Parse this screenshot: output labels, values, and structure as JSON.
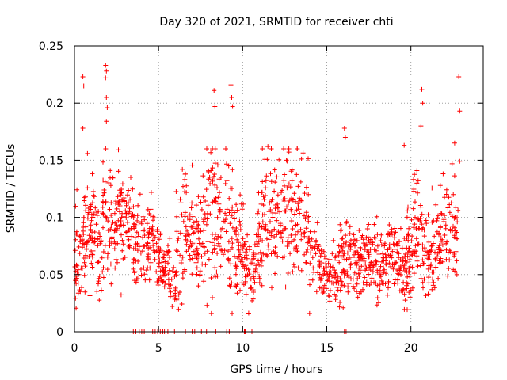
{
  "chart_data": {
    "type": "scatter",
    "title": "Day 320 of 2021, SRMTID for receiver chti",
    "xlabel": "GPS time / hours",
    "ylabel": "SRMTID / TECUs",
    "xlim": [
      0,
      24.3
    ],
    "ylim": [
      0,
      0.25
    ],
    "xticks": [
      0,
      5,
      10,
      15,
      20
    ],
    "xtick_labels": [
      "0",
      "5",
      "10",
      "15",
      "20"
    ],
    "yticks": [
      0,
      0.05,
      0.1,
      0.15,
      0.2,
      0.25
    ],
    "ytick_labels": [
      "0",
      "0.05",
      "0.1",
      "0.15",
      "0.2",
      "0.25"
    ],
    "grid": true,
    "marker": "+",
    "marker_color": "#ff0000",
    "envelope": {
      "x": [
        0.0,
        0.2,
        0.4,
        0.6,
        0.8,
        1.0,
        1.3,
        1.6,
        1.9,
        2.2,
        2.5,
        2.8,
        3.1,
        3.4,
        3.7,
        4.0,
        4.3,
        4.6,
        4.9,
        5.2,
        5.5,
        5.8,
        6.1,
        6.4,
        6.7,
        7.0,
        7.3,
        7.6,
        7.9,
        8.2,
        8.5,
        8.8,
        9.1,
        9.4,
        9.7,
        10.0,
        10.3,
        10.6,
        10.9,
        11.2,
        11.5,
        11.8,
        12.1,
        12.4,
        12.7,
        13.0,
        13.3,
        13.6,
        13.9,
        14.2,
        14.5,
        14.8,
        15.1,
        15.4,
        15.7,
        16.0,
        16.3,
        16.6,
        16.9,
        17.2,
        17.5,
        17.8,
        18.1,
        18.4,
        18.7,
        19.0,
        19.3,
        19.6,
        19.9,
        20.2,
        20.5,
        20.8,
        21.1,
        21.4,
        21.7,
        22.0,
        22.3,
        22.6,
        22.8
      ],
      "center": [
        0.055,
        0.062,
        0.075,
        0.085,
        0.09,
        0.088,
        0.08,
        0.085,
        0.1,
        0.095,
        0.088,
        0.095,
        0.1,
        0.09,
        0.08,
        0.075,
        0.075,
        0.085,
        0.07,
        0.06,
        0.06,
        0.05,
        0.065,
        0.08,
        0.085,
        0.08,
        0.07,
        0.085,
        0.1,
        0.105,
        0.1,
        0.105,
        0.1,
        0.085,
        0.075,
        0.07,
        0.055,
        0.05,
        0.07,
        0.09,
        0.095,
        0.1,
        0.095,
        0.1,
        0.11,
        0.105,
        0.1,
        0.095,
        0.085,
        0.07,
        0.06,
        0.05,
        0.045,
        0.055,
        0.06,
        0.055,
        0.06,
        0.065,
        0.062,
        0.058,
        0.06,
        0.065,
        0.06,
        0.058,
        0.06,
        0.065,
        0.055,
        0.05,
        0.07,
        0.09,
        0.085,
        0.07,
        0.06,
        0.065,
        0.08,
        0.085,
        0.09,
        0.085,
        0.08
      ],
      "spread": [
        0.025,
        0.03,
        0.035,
        0.035,
        0.03,
        0.03,
        0.03,
        0.035,
        0.04,
        0.035,
        0.03,
        0.03,
        0.03,
        0.03,
        0.025,
        0.025,
        0.02,
        0.02,
        0.02,
        0.015,
        0.015,
        0.02,
        0.03,
        0.035,
        0.035,
        0.03,
        0.03,
        0.035,
        0.04,
        0.045,
        0.045,
        0.045,
        0.04,
        0.035,
        0.03,
        0.025,
        0.02,
        0.02,
        0.03,
        0.035,
        0.035,
        0.035,
        0.035,
        0.035,
        0.035,
        0.035,
        0.03,
        0.03,
        0.03,
        0.025,
        0.02,
        0.02,
        0.02,
        0.02,
        0.025,
        0.02,
        0.025,
        0.025,
        0.025,
        0.02,
        0.02,
        0.02,
        0.02,
        0.02,
        0.02,
        0.025,
        0.02,
        0.02,
        0.03,
        0.035,
        0.03,
        0.025,
        0.02,
        0.025,
        0.03,
        0.03,
        0.03,
        0.03,
        0.025
      ]
    },
    "point_count": 1600,
    "outliers": [
      {
        "x": 0.5,
        "y": 0.223
      },
      {
        "x": 0.55,
        "y": 0.215
      },
      {
        "x": 0.5,
        "y": 0.178
      },
      {
        "x": 1.85,
        "y": 0.233
      },
      {
        "x": 1.9,
        "y": 0.228
      },
      {
        "x": 1.85,
        "y": 0.222
      },
      {
        "x": 1.9,
        "y": 0.205
      },
      {
        "x": 1.95,
        "y": 0.196
      },
      {
        "x": 1.9,
        "y": 0.184
      },
      {
        "x": 8.3,
        "y": 0.211
      },
      {
        "x": 8.35,
        "y": 0.197
      },
      {
        "x": 9.3,
        "y": 0.216
      },
      {
        "x": 9.35,
        "y": 0.205
      },
      {
        "x": 9.4,
        "y": 0.197
      },
      {
        "x": 16.05,
        "y": 0.178
      },
      {
        "x": 16.1,
        "y": 0.17
      },
      {
        "x": 20.65,
        "y": 0.212
      },
      {
        "x": 20.7,
        "y": 0.2
      },
      {
        "x": 20.6,
        "y": 0.18
      },
      {
        "x": 22.85,
        "y": 0.223
      },
      {
        "x": 22.9,
        "y": 0.193
      },
      {
        "x": 22.6,
        "y": 0.165
      },
      {
        "x": 22.9,
        "y": 0.149
      },
      {
        "x": 12.6,
        "y": 0.15
      },
      {
        "x": 11.5,
        "y": 0.162
      },
      {
        "x": 19.6,
        "y": 0.163
      }
    ],
    "zero_values_x": [
      3.5,
      3.65,
      3.85,
      4.0,
      4.15,
      4.65,
      4.8,
      4.95,
      5.1,
      5.25,
      5.35,
      5.55,
      5.95,
      6.6,
      7.0,
      7.15,
      7.55,
      7.7,
      7.85,
      8.4,
      9.05,
      9.2,
      10.1,
      10.15,
      10.55,
      16.05,
      16.15
    ]
  }
}
